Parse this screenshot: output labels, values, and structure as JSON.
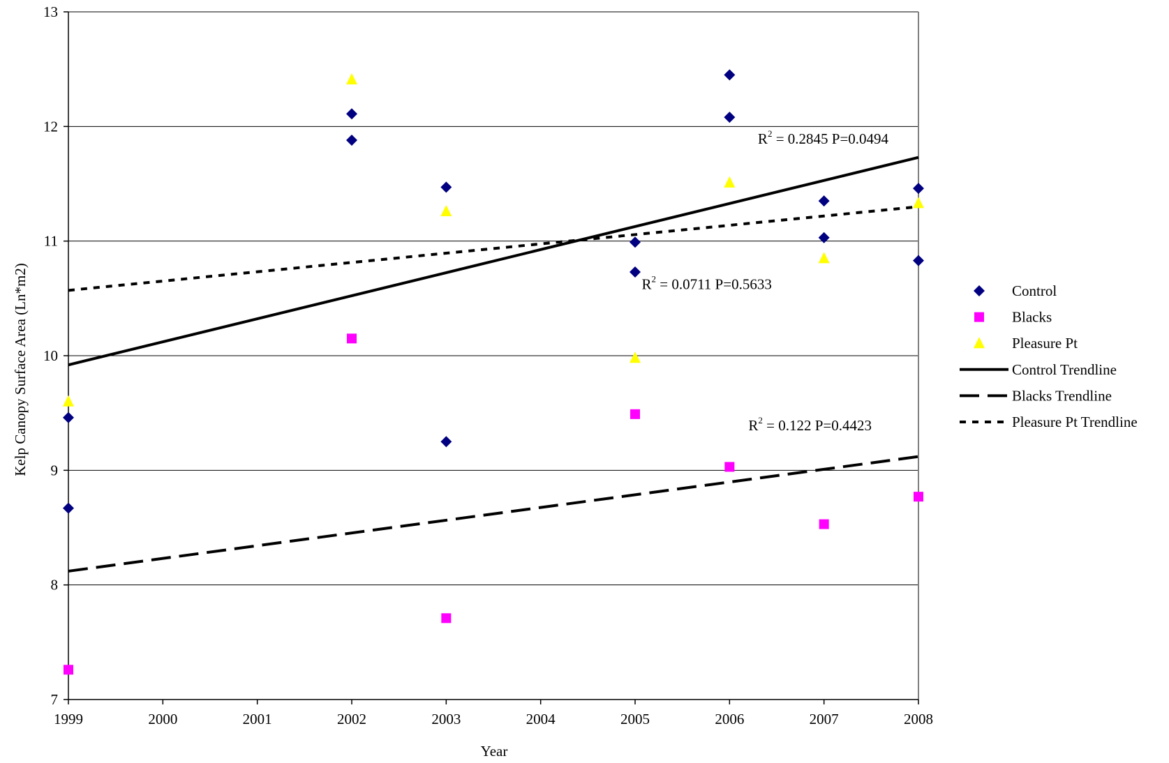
{
  "chart_data": {
    "type": "scatter",
    "title": "",
    "xlabel": "Year",
    "ylabel": "Kelp Canopy Surface Area (Ln*m2)",
    "xlim": [
      1999,
      2008
    ],
    "ylim": [
      7,
      13
    ],
    "x_ticks": [
      "1999",
      "2000",
      "2001",
      "2002",
      "2003",
      "2004",
      "2005",
      "2006",
      "2007",
      "2008"
    ],
    "y_ticks": [
      "7",
      "8",
      "9",
      "10",
      "11",
      "12",
      "13"
    ],
    "grid": "horizontal",
    "legend_position": "right",
    "series": [
      {
        "name": "Control",
        "marker": "diamond",
        "color": "#000080",
        "points": [
          [
            1999,
            9.46
          ],
          [
            1999,
            8.67
          ],
          [
            2002,
            12.11
          ],
          [
            2002,
            11.88
          ],
          [
            2003,
            11.47
          ],
          [
            2003,
            9.25
          ],
          [
            2005,
            10.99
          ],
          [
            2005,
            10.73
          ],
          [
            2006,
            12.45
          ],
          [
            2006,
            12.08
          ],
          [
            2007,
            11.35
          ],
          [
            2007,
            11.03
          ],
          [
            2008,
            11.46
          ],
          [
            2008,
            10.83
          ]
        ]
      },
      {
        "name": "Blacks",
        "marker": "square",
        "color": "#FF00FF",
        "points": [
          [
            1999,
            7.26
          ],
          [
            2002,
            10.15
          ],
          [
            2003,
            7.71
          ],
          [
            2005,
            9.49
          ],
          [
            2006,
            9.03
          ],
          [
            2007,
            8.53
          ],
          [
            2008,
            8.77
          ]
        ]
      },
      {
        "name": "Pleasure Pt",
        "marker": "triangle",
        "color": "#FFFF00",
        "points": [
          [
            1999,
            9.6
          ],
          [
            2002,
            12.41
          ],
          [
            2003,
            11.26
          ],
          [
            2005,
            9.98
          ],
          [
            2006,
            11.51
          ],
          [
            2007,
            10.85
          ],
          [
            2008,
            11.33
          ]
        ]
      }
    ],
    "trendlines": [
      {
        "name": "Control Trendline",
        "style": "solid",
        "start": [
          1999,
          9.92
        ],
        "end": [
          2008,
          11.73
        ]
      },
      {
        "name": "Blacks Trendline",
        "style": "dashed",
        "start": [
          1999,
          8.12
        ],
        "end": [
          2008,
          9.12
        ]
      },
      {
        "name": "Pleasure Pt Trendline",
        "style": "dotted",
        "start": [
          1999,
          10.57
        ],
        "end": [
          2008,
          11.3
        ]
      }
    ],
    "annotations": [
      {
        "text_r": "R",
        "sup": "2",
        "text_rest": " = 0.2845  P=0.0494"
      },
      {
        "text_r": "R",
        "sup": "2",
        "text_rest": " = 0.0711  P=0.5633"
      },
      {
        "text_r": "R",
        "sup": "2",
        "text_rest": " = 0.122  P=0.4423"
      }
    ]
  }
}
